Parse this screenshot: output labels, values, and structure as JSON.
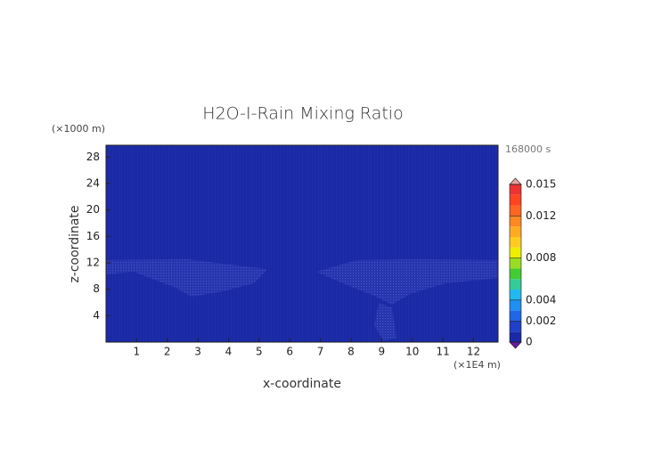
{
  "chart_data": {
    "type": "heatmap",
    "title": "H2O-I-Rain Mixing Ratio",
    "y_unit": "(×1000 m)",
    "x_unit": "(×1E4 m)",
    "time_label": "168000 s",
    "xlabel": "x-coordinate",
    "ylabel": "z-coordinate",
    "xlim": [
      0,
      12.8
    ],
    "xticks": [
      1,
      2,
      3,
      4,
      5,
      6,
      7,
      8,
      9,
      10,
      11,
      12
    ],
    "ylim": [
      0,
      29.8
    ],
    "yticks": [
      4,
      8,
      12,
      16,
      20,
      24,
      28
    ],
    "colorbar": {
      "clim": [
        0,
        0.015
      ],
      "ticks": [
        0,
        0.002,
        0.004,
        0.008,
        0.012,
        0.015
      ],
      "colors": [
        "#1a2aa6",
        "#1f40c8",
        "#1e66e6",
        "#1f8ff2",
        "#22b8f0",
        "#33cc99",
        "#44cc33",
        "#99dd22",
        "#eeee00",
        "#ffcc22",
        "#ffaa22",
        "#ff8822",
        "#ff6622",
        "#ff4422",
        "#ee3333"
      ],
      "under_color": "#6a1aa0",
      "over_color": "#f0a0a0"
    }
  }
}
